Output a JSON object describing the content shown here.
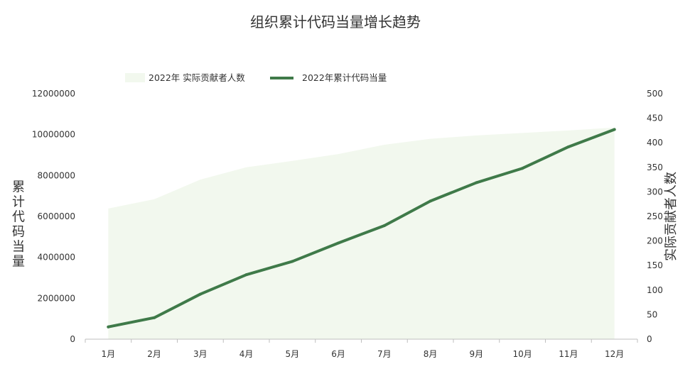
{
  "chart_data": {
    "type": "area+line",
    "title": "组织累计代码当量增长趋势",
    "categories": [
      "1月",
      "2月",
      "3月",
      "4月",
      "5月",
      "6月",
      "7月",
      "8月",
      "9月",
      "10月",
      "11月",
      "12月"
    ],
    "series": [
      {
        "name": "2022年 实际贡献者人数",
        "type": "area",
        "axis": "right",
        "color": "#f2f8ee",
        "values": [
          266,
          285,
          325,
          350,
          363,
          377,
          396,
          408,
          415,
          420,
          425,
          431
        ]
      },
      {
        "name": "2022年累计代码当量",
        "type": "line",
        "axis": "left",
        "color": "#3f7a49",
        "values": [
          600000,
          1050000,
          2200000,
          3150000,
          3800000,
          4700000,
          5550000,
          6750000,
          7650000,
          8350000,
          9400000,
          10250000
        ]
      }
    ],
    "y_left": {
      "label": "累计代码当量",
      "range": [
        0,
        12000000
      ],
      "ticks": [
        "0",
        "2000000",
        "4000000",
        "6000000",
        "8000000",
        "10000000",
        "12000000"
      ]
    },
    "y_right": {
      "label": "实际贡献者人数",
      "range": [
        0,
        500
      ],
      "ticks": [
        "0",
        "50",
        "100",
        "150",
        "200",
        "250",
        "300",
        "350",
        "400",
        "450",
        "500"
      ]
    },
    "grid": false,
    "legend_position": "top"
  }
}
